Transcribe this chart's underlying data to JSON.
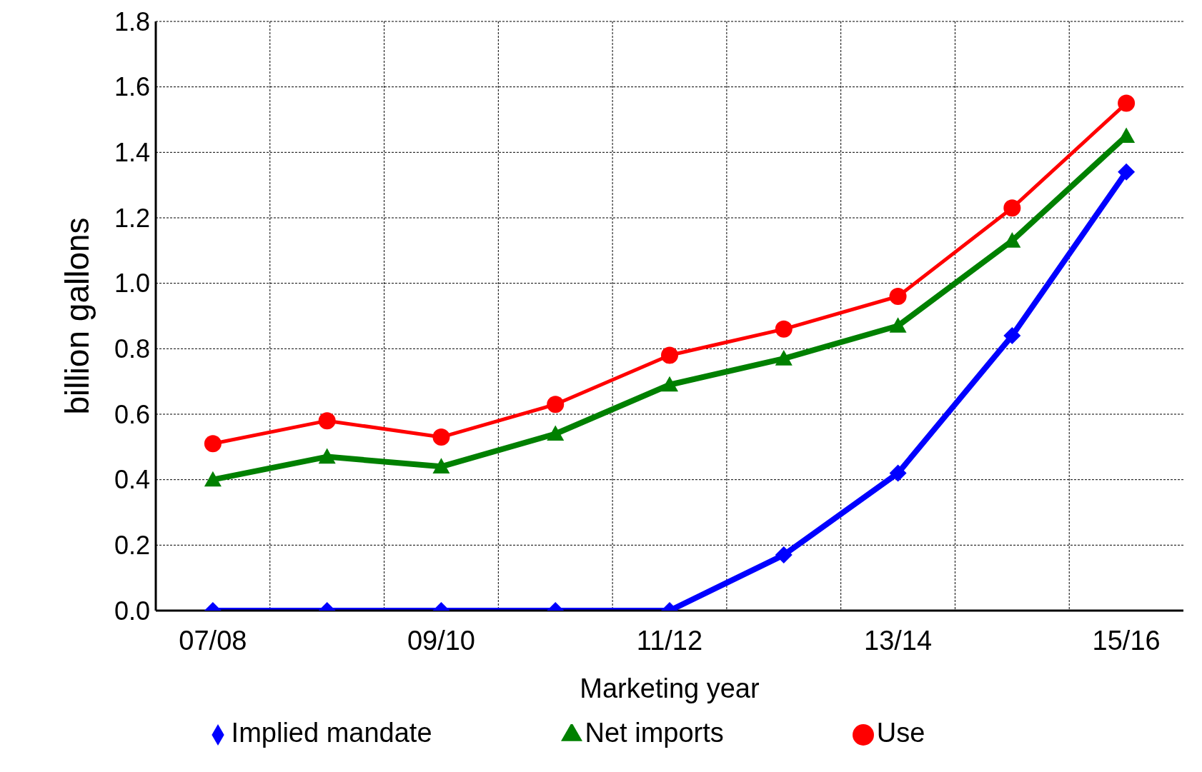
{
  "chart_data": {
    "type": "line",
    "xlabel": "Marketing year",
    "ylabel": "billion gallons",
    "categories": [
      "07/08",
      null,
      "09/10",
      null,
      "11/12",
      null,
      "13/14",
      null,
      "15/16"
    ],
    "series": [
      {
        "name": "Use",
        "color": "#ff0000",
        "marker": "circle",
        "values": [
          0.51,
          0.58,
          0.53,
          0.63,
          0.78,
          0.86,
          0.96,
          1.23,
          1.55
        ]
      },
      {
        "name": "Implied mandate",
        "color": "#0000ff",
        "marker": "diamond",
        "values": [
          0,
          0,
          0,
          0,
          0,
          0.17,
          0.42,
          0.84,
          1.34
        ]
      },
      {
        "name": "Net imports",
        "color": "#008000",
        "marker": "triangle",
        "values": [
          0.4,
          0.47,
          0.44,
          0.54,
          0.69,
          0.77,
          0.87,
          1.13,
          1.45
        ]
      }
    ],
    "ylim": [
      0,
      1.8
    ],
    "yticks": [
      {
        "value": 0,
        "label": "0.0"
      },
      0.2,
      0.4,
      0.6,
      0.8,
      {
        "value": 1,
        "label": "1.0"
      },
      1.2,
      1.4,
      1.6,
      1.8
    ],
    "grid": true,
    "legend": "bottom",
    "line_style": "solid"
  }
}
